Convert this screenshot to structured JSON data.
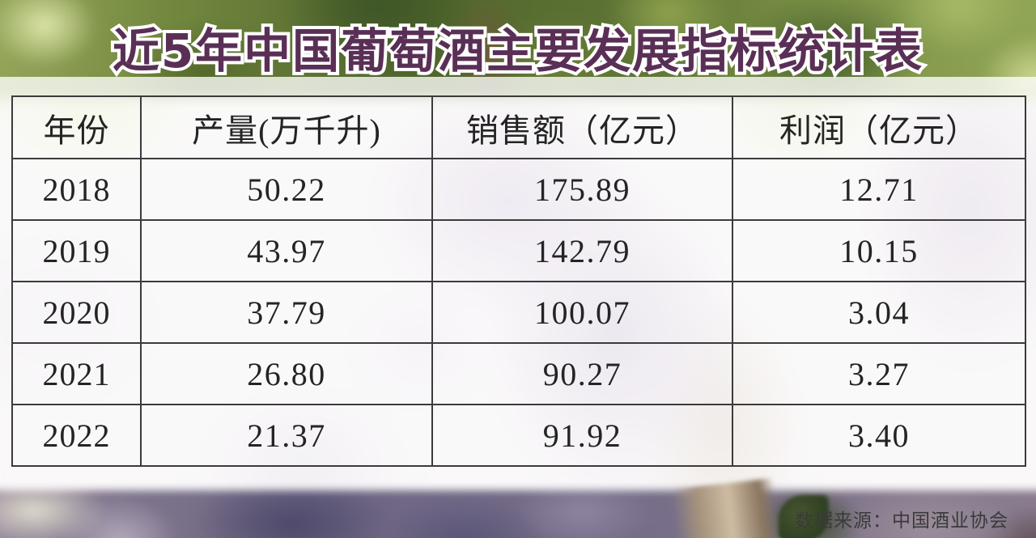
{
  "title": "近5年中国葡萄酒主要发展指标统计表",
  "table": {
    "columns": [
      "年份",
      "产量(万千升)",
      "销售额（亿元）",
      "利润（亿元）"
    ],
    "rows": [
      {
        "year": "2018",
        "production": "50.22",
        "sales": "175.89",
        "profit": "12.71"
      },
      {
        "year": "2019",
        "production": "43.97",
        "sales": "142.79",
        "profit": "10.15"
      },
      {
        "year": "2020",
        "production": "37.79",
        "sales": "100.07",
        "profit": "3.04"
      },
      {
        "year": "2021",
        "production": "26.80",
        "sales": "90.27",
        "profit": "3.27"
      },
      {
        "year": "2022",
        "production": "21.37",
        "sales": "91.92",
        "profit": "3.40"
      }
    ]
  },
  "footer": {
    "source": "数据来源：中国酒业协会"
  },
  "colors": {
    "title_fill": "#5a2f56",
    "title_outline": "#ffffff",
    "table_border": "#3b3b3b",
    "cell_text": "#242424",
    "source_text": "#3a3a3a"
  },
  "chart_data": {
    "type": "table",
    "title": "近5年中国葡萄酒主要发展指标统计表",
    "categories": [
      "2018",
      "2019",
      "2020",
      "2021",
      "2022"
    ],
    "series": [
      {
        "name": "产量(万千升)",
        "values": [
          50.22,
          43.97,
          37.79,
          26.8,
          21.37
        ]
      },
      {
        "name": "销售额（亿元）",
        "values": [
          175.89,
          142.79,
          100.07,
          90.27,
          91.92
        ]
      },
      {
        "name": "利润（亿元）",
        "values": [
          12.71,
          10.15,
          3.04,
          3.27,
          3.4
        ]
      }
    ],
    "source": "中国酒业协会"
  }
}
